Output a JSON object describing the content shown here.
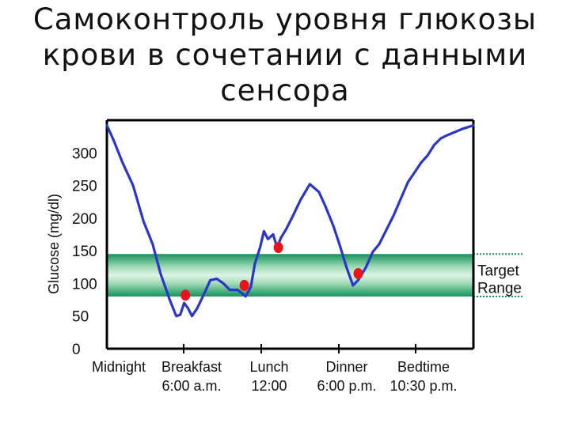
{
  "slide": {
    "title_lines": [
      "Самоконтроль уровня глюкозы",
      "крови в сочетании с данными",
      "сенсора"
    ]
  },
  "chart_data": {
    "type": "line",
    "title": "",
    "ylabel": "Glucose (mg/dl)",
    "xlabel": "",
    "ylim": [
      0,
      350
    ],
    "xlim": [
      0,
      28
    ],
    "yticks": [
      0,
      50,
      100,
      150,
      200,
      250,
      300
    ],
    "categories": [
      {
        "x": 6,
        "line1": "Midnight",
        "line2": ""
      },
      {
        "x": 6,
        "line1": "Breakfast",
        "line2": "6:00 a.m."
      },
      {
        "x": 12,
        "line1": "Lunch",
        "line2": "12:00"
      },
      {
        "x": 18,
        "line1": "Dinner",
        "line2": "6:00 p.m."
      },
      {
        "x": 22.5,
        "line1": "Bedtime",
        "line2": "10:30 p.m."
      }
    ],
    "target_range": {
      "low": 80,
      "high": 145,
      "label_line1": "Target",
      "label_line2": "Range"
    },
    "series": [
      {
        "color": "#2b36c9",
        "x": [
          0,
          0.5,
          1.2,
          2,
          2.8,
          3.5,
          4.1,
          4.8,
          5.3,
          5.6,
          5.9,
          6.2,
          6.5,
          6.9,
          7.4,
          7.9,
          8.4,
          8.9,
          9.4,
          10,
          10.6,
          11,
          11.3,
          11.7,
          12,
          12.3,
          12.7,
          13,
          13.3,
          13.7,
          14.2,
          14.8,
          15.5,
          16.2,
          16.7,
          17.3,
          17.8,
          18.3,
          18.8,
          19.2,
          19.8,
          20.3,
          20.8,
          21.3,
          21.9,
          22.5,
          23,
          23.5,
          24,
          24.5,
          25,
          25.5,
          26,
          26.6,
          27.2,
          28
        ],
        "values": [
          342,
          320,
          285,
          250,
          195,
          160,
          115,
          75,
          50,
          52,
          70,
          62,
          50,
          62,
          83,
          105,
          107,
          100,
          90,
          90,
          80,
          95,
          130,
          155,
          180,
          168,
          175,
          155,
          170,
          183,
          203,
          228,
          252,
          240,
          218,
          188,
          158,
          125,
          97,
          105,
          125,
          148,
          160,
          180,
          204,
          232,
          255,
          270,
          285,
          296,
          312,
          322,
          327,
          332,
          337,
          342
        ]
      }
    ],
    "markers": {
      "color": "#e8141c",
      "points": [
        {
          "x": 6,
          "y": 82
        },
        {
          "x": 10.5,
          "y": 97
        },
        {
          "x": 13.1,
          "y": 155
        },
        {
          "x": 19.2,
          "y": 115
        }
      ]
    }
  }
}
